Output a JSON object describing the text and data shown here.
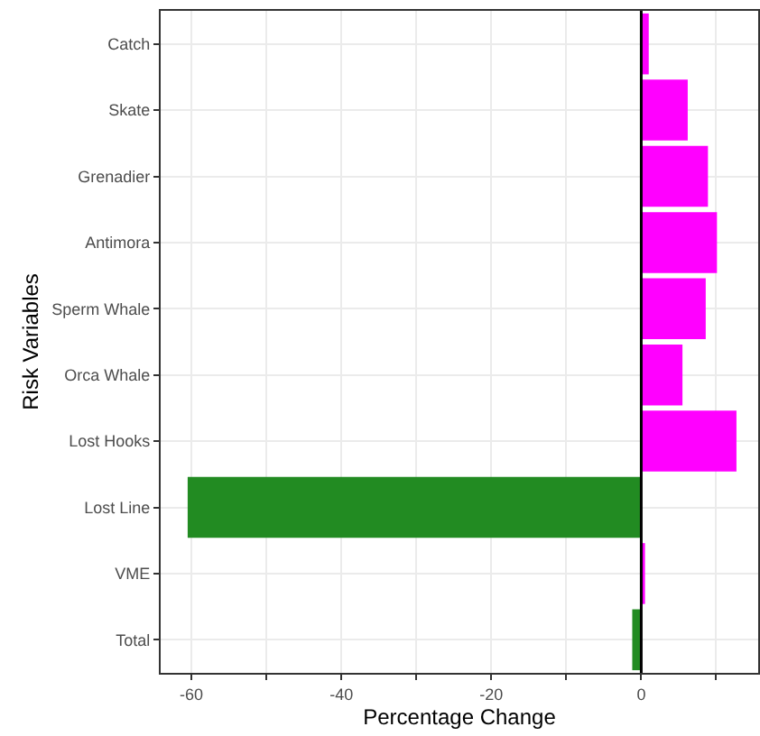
{
  "chart_data": {
    "type": "bar",
    "orientation": "horizontal",
    "xlabel": "Percentage Change",
    "ylabel": "Risk Variables",
    "categories": [
      "Catch",
      "Skate",
      "Grenadier",
      "Antimora",
      "Sperm Whale",
      "Orca Whale",
      "Lost Hooks",
      "Lost Line",
      "VME",
      "Total"
    ],
    "values": [
      1.0,
      6.2,
      8.9,
      10.1,
      8.6,
      5.5,
      12.7,
      -60.5,
      0.5,
      -1.2
    ],
    "colors": [
      "#ff00ff",
      "#ff00ff",
      "#ff00ff",
      "#ff00ff",
      "#ff00ff",
      "#ff00ff",
      "#ff00ff",
      "#228b22",
      "#ff00ff",
      "#228b22"
    ],
    "xlim": [
      -64.1,
      15.6
    ],
    "xticks": [
      -60,
      {
        "value": -50,
        "label": null
      },
      -40,
      {
        "value": -30,
        "label": null
      },
      -20,
      {
        "value": -10,
        "label": null
      },
      0,
      {
        "value": 10,
        "label": null
      }
    ],
    "ref_lines": [
      {
        "axis": "x",
        "value": 0,
        "color": "#000000"
      }
    ],
    "grid": true,
    "legend": false
  }
}
